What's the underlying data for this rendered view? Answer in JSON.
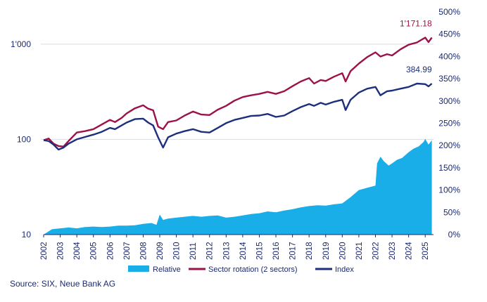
{
  "source": "Source: SIX, Neue Bank AG",
  "colors": {
    "relative": "#1aaee8",
    "sector": "#9b1248",
    "index": "#1c2f7c",
    "axis_text": "#1c2a6e",
    "grid": "#d9dde3"
  },
  "chart_data": {
    "type": "line",
    "title": "",
    "xlabel": "",
    "ylabel": "",
    "left_axis": {
      "scale": "log",
      "range": [
        10,
        2000
      ],
      "ticks": [
        10,
        100,
        1000
      ],
      "tick_labels": [
        "10",
        "100",
        "1'000"
      ]
    },
    "right_axis": {
      "scale": "linear",
      "range": [
        0,
        500
      ],
      "ticks": [
        0,
        50,
        100,
        150,
        200,
        250,
        300,
        350,
        400,
        450,
        500
      ],
      "tick_labels": [
        "0%",
        "50%",
        "100%",
        "150%",
        "200%",
        "250%",
        "300%",
        "350%",
        "400%",
        "450%",
        "500%"
      ]
    },
    "x_range": [
      2002,
      2025.5
    ],
    "x_ticks": [
      "2002",
      "2003",
      "2004",
      "2005",
      "2006",
      "2007",
      "2008",
      "2009",
      "2010",
      "2011",
      "2012",
      "2013",
      "2014",
      "2015",
      "2016",
      "2017",
      "2018",
      "2019",
      "2020",
      "2021",
      "2022",
      "2023",
      "2024",
      "2025"
    ],
    "grid": "horizontal",
    "legend_position": "bottom",
    "series": [
      {
        "name": "Relative",
        "type": "area",
        "axis": "right",
        "x": [
          2002,
          2002.5,
          2003,
          2003.5,
          2004,
          2004.5,
          2005,
          2005.5,
          2006,
          2006.5,
          2007,
          2007.5,
          2008,
          2008.5,
          2008.8,
          2009,
          2009.2,
          2009.5,
          2010,
          2010.5,
          2011,
          2011.5,
          2012,
          2012.5,
          2013,
          2013.5,
          2014,
          2014.5,
          2015,
          2015.5,
          2016,
          2016.5,
          2017,
          2017.5,
          2018,
          2018.5,
          2019,
          2019.5,
          2020,
          2020.5,
          2021,
          2021.5,
          2022,
          2022.1,
          2022.3,
          2022.5,
          2022.8,
          2023,
          2023.3,
          2023.6,
          2024,
          2024.3,
          2024.6,
          2024.9,
          2025,
          2025.2,
          2025.4
        ],
        "values": [
          0,
          12,
          14,
          16,
          14,
          17,
          18,
          17,
          18,
          20,
          20,
          21,
          24,
          26,
          22,
          45,
          33,
          36,
          38,
          40,
          42,
          40,
          42,
          43,
          38,
          40,
          43,
          46,
          48,
          52,
          50,
          54,
          57,
          61,
          64,
          66,
          65,
          68,
          70,
          84,
          100,
          105,
          110,
          160,
          175,
          165,
          155,
          160,
          168,
          172,
          185,
          193,
          198,
          208,
          215,
          202,
          212
        ]
      },
      {
        "name": "Sector rotation (2 sectors)",
        "type": "line",
        "axis": "left",
        "x": [
          2002,
          2002.3,
          2002.6,
          2002.9,
          2003.2,
          2003.5,
          2004,
          2004.5,
          2005,
          2005.5,
          2006,
          2006.3,
          2006.7,
          2007,
          2007.5,
          2008,
          2008.3,
          2008.6,
          2008.9,
          2009.2,
          2009.5,
          2010,
          2010.5,
          2011,
          2011.5,
          2012,
          2012.5,
          2013,
          2013.5,
          2014,
          2014.5,
          2015,
          2015.5,
          2016,
          2016.5,
          2017,
          2017.5,
          2018,
          2018.3,
          2018.7,
          2019,
          2019.5,
          2020,
          2020.2,
          2020.5,
          2021,
          2021.5,
          2022,
          2022.3,
          2022.7,
          2023,
          2023.5,
          2024,
          2024.5,
          2025,
          2025.2,
          2025.4
        ],
        "values": [
          98,
          102,
          90,
          85,
          84,
          96,
          118,
          122,
          128,
          143,
          160,
          152,
          168,
          187,
          212,
          228,
          210,
          202,
          136,
          128,
          152,
          158,
          178,
          196,
          182,
          180,
          205,
          225,
          255,
          278,
          290,
          300,
          315,
          300,
          320,
          362,
          405,
          440,
          385,
          420,
          410,
          455,
          495,
          405,
          520,
          625,
          730,
          820,
          740,
          785,
          760,
          880,
          985,
          1040,
          1171,
          1050,
          1171.18
        ]
      },
      {
        "name": "Index",
        "type": "line",
        "axis": "left",
        "x": [
          2002,
          2002.3,
          2002.6,
          2002.9,
          2003.2,
          2003.5,
          2004,
          2004.5,
          2005,
          2005.5,
          2006,
          2006.3,
          2006.7,
          2007,
          2007.5,
          2008,
          2008.3,
          2008.6,
          2008.9,
          2009.2,
          2009.5,
          2010,
          2010.5,
          2011,
          2011.5,
          2012,
          2012.5,
          2013,
          2013.5,
          2014,
          2014.5,
          2015,
          2015.5,
          2016,
          2016.5,
          2017,
          2017.5,
          2018,
          2018.3,
          2018.7,
          2019,
          2019.5,
          2020,
          2020.2,
          2020.5,
          2021,
          2021.5,
          2022,
          2022.3,
          2022.7,
          2023,
          2023.5,
          2024,
          2024.5,
          2025,
          2025.2,
          2025.4
        ],
        "values": [
          98,
          96,
          88,
          78,
          82,
          90,
          100,
          106,
          112,
          120,
          132,
          128,
          140,
          150,
          163,
          165,
          150,
          140,
          105,
          82,
          105,
          115,
          122,
          128,
          120,
          118,
          132,
          148,
          160,
          168,
          176,
          178,
          185,
          172,
          178,
          198,
          218,
          235,
          225,
          242,
          232,
          248,
          260,
          203,
          260,
          310,
          340,
          355,
          290,
          320,
          325,
          340,
          355,
          385,
          380,
          360,
          384.99
        ]
      }
    ],
    "annotations": [
      {
        "series": "Sector rotation (2 sectors)",
        "text": "1'171.18"
      },
      {
        "series": "Index",
        "text": "384.99"
      }
    ]
  }
}
